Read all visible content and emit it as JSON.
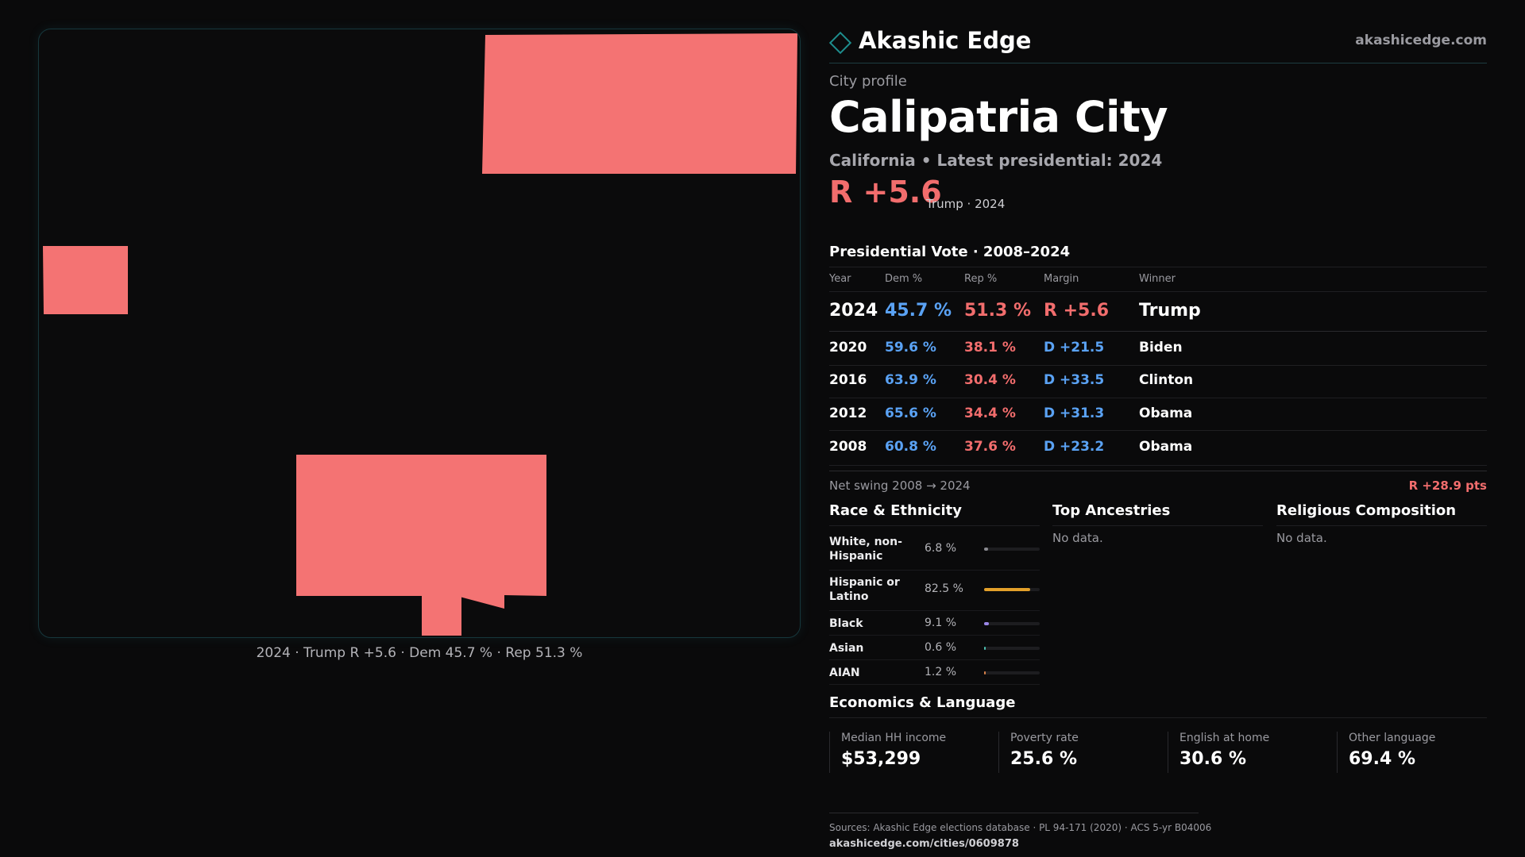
{
  "brand": {
    "name": "Akashic Edge",
    "site": "akashicedge.com",
    "icon": "diamond-outline-icon",
    "accent_color": "#1e8e8e"
  },
  "profile": {
    "kicker": "City profile",
    "city": "Calipatria City",
    "subtitle": "California • Latest presidential: 2024",
    "margin": "R +5.6",
    "margin_note": "Trump · 2024"
  },
  "map": {
    "fill_color": "#f47373",
    "border_color": "#16373c",
    "caption": "2024 · Trump R +5.6 · Dem 45.7 % · Rep 51.3 %"
  },
  "vote": {
    "title": "Presidential Vote · 2008–2024",
    "headers": [
      "Year",
      "Dem %",
      "Rep %",
      "Margin",
      "Winner"
    ],
    "rows": [
      {
        "year": "2024",
        "dem": "45.7 %",
        "rep": "51.3 %",
        "margin": "R +5.6",
        "margin_party": "R",
        "winner": "Trump"
      },
      {
        "year": "2020",
        "dem": "59.6 %",
        "rep": "38.1 %",
        "margin": "D +21.5",
        "margin_party": "D",
        "winner": "Biden"
      },
      {
        "year": "2016",
        "dem": "63.9 %",
        "rep": "30.4 %",
        "margin": "D +33.5",
        "margin_party": "D",
        "winner": "Clinton"
      },
      {
        "year": "2012",
        "dem": "65.6 %",
        "rep": "34.4 %",
        "margin": "D +31.3",
        "margin_party": "D",
        "winner": "Obama"
      },
      {
        "year": "2008",
        "dem": "60.8 %",
        "rep": "37.6 %",
        "margin": "D +23.2",
        "margin_party": "D",
        "winner": "Obama"
      }
    ],
    "colors": {
      "dem": "#5aa2f4",
      "rep": "#f26d6d"
    }
  },
  "swing": {
    "label": "Net swing 2008 → 2024",
    "value": "R +28.9 pts"
  },
  "race": {
    "title": "Race & Ethnicity",
    "items": [
      {
        "label": "White, non-Hispanic",
        "value": "6.8 %",
        "pct": 6.8,
        "color": "#8a8a90"
      },
      {
        "label": "Hispanic or Latino",
        "value": "82.5 %",
        "pct": 82.5,
        "color": "#e3a02a"
      },
      {
        "label": "Black",
        "value": "9.1 %",
        "pct": 9.1,
        "color": "#9a86e8"
      },
      {
        "label": "Asian",
        "value": "0.6 %",
        "pct": 0.6,
        "color": "#4cc0b0"
      },
      {
        "label": "AIAN",
        "value": "1.2 %",
        "pct": 1.2,
        "color": "#d9824a"
      }
    ]
  },
  "ancestries": {
    "title": "Top Ancestries",
    "empty": "No data."
  },
  "religion": {
    "title": "Religious Composition",
    "empty": "No data."
  },
  "economics": {
    "title": "Economics & Language",
    "items": [
      {
        "label": "Median HH income",
        "value": "$53,299"
      },
      {
        "label": "Poverty rate",
        "value": "25.6 %"
      },
      {
        "label": "English at home",
        "value": "30.6 %"
      },
      {
        "label": "Other language",
        "value": "69.4 %"
      }
    ]
  },
  "sources": {
    "text": "Sources: Akashic Edge elections database · PL 94-171 (2020) · ACS 5-yr B04006",
    "url": "akashicedge.com/cities/0609878"
  }
}
